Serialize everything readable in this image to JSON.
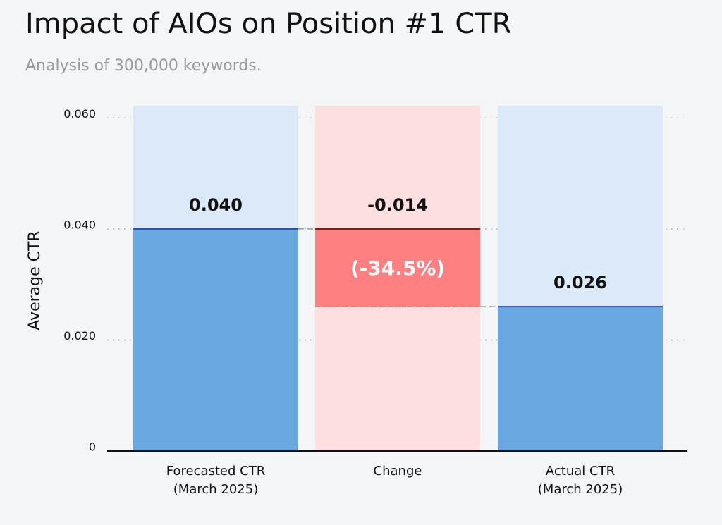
{
  "chart_data": {
    "type": "waterfall",
    "title": "Impact of AIOs on Position #1 CTR",
    "subtitle": "Analysis of 300,000 keywords.",
    "y_label": "Average CTR",
    "categories": [
      "Forecasted CTR\n(March 2025)",
      "Change",
      "Actual CTR\n(March 2025)"
    ],
    "measures": [
      "absolute",
      "relative",
      "total"
    ],
    "values": [
      0.04,
      -0.014,
      0.026
    ],
    "value_labels": [
      "0.040",
      "-0.014",
      "0.026"
    ],
    "annotation": "(-34.5%)",
    "colors": {
      "increase": "#6aa9e0",
      "decrease": "#ff8080",
      "background": "#dbe9f8",
      "background_decrease": "#fddfe0",
      "edge": "#1d4fb8"
    },
    "ylim": [
      0,
      0.0622
    ],
    "yticks": [
      0,
      {
        "value": 0.02,
        "label": "0.020"
      },
      {
        "value": 0.04,
        "label": "0.040"
      },
      {
        "value": 0.06,
        "label": "0.060"
      }
    ],
    "grid": true
  }
}
